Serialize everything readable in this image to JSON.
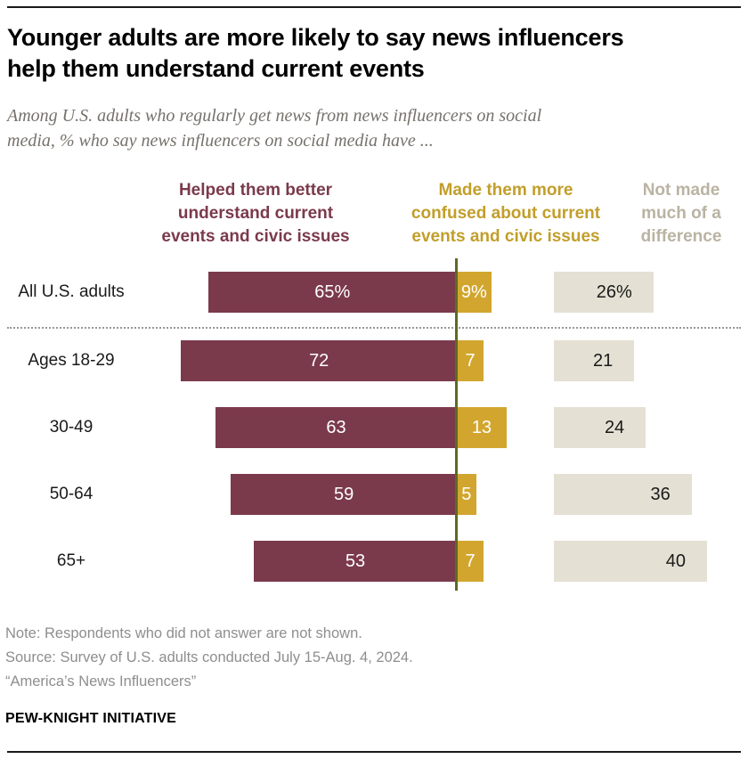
{
  "title": {
    "lines": [
      "Younger adults are more likely to say news influencers",
      "help them understand current events"
    ]
  },
  "subtitle": {
    "lines": [
      "Among U.S. adults who regularly get news from news influencers on social",
      "media, % who say news influencers on social media have ..."
    ]
  },
  "columns": [
    {
      "key": "helped",
      "header_lines": [
        "Helped them better",
        "understand current",
        "events and civic issues"
      ],
      "header_color": "#7b3a4c",
      "bar_color": "#7b3a4c",
      "label_color": "#ffffff"
    },
    {
      "key": "confused",
      "header_lines": [
        "Made them more",
        "confused about current",
        "events and civic issues"
      ],
      "header_color": "#c29e2a",
      "bar_color": "#d2a62e",
      "label_color": "#ffffff"
    },
    {
      "key": "no-difference",
      "header_lines": [
        "Not made",
        "much of a",
        "difference"
      ],
      "header_color": "#bab3a3",
      "bar_color": "#e4e0d3",
      "label_color": "#1a1a1a"
    }
  ],
  "chart_data": {
    "type": "bar",
    "orientation": "horizontal",
    "unit": "%",
    "title": "Younger adults are more likely to say news influencers help them understand current events",
    "subtitle": "Among U.S. adults who regularly get news from news influencers on social media, % who say news influencers on social media have ...",
    "categories": [
      "All U.S. adults",
      "Ages 18-29",
      "30-49",
      "50-64",
      "65+"
    ],
    "series": [
      {
        "name": "Helped them better understand current events and civic issues",
        "values": [
          65,
          72,
          63,
          59,
          53
        ],
        "display_labels": [
          "65%",
          "72",
          "63",
          "59",
          "53"
        ]
      },
      {
        "name": "Made them more confused about current events and civic issues",
        "values": [
          9,
          7,
          13,
          5,
          7
        ],
        "display_labels": [
          "9%",
          "7",
          "13",
          "5",
          "7"
        ]
      },
      {
        "name": "Not made much of a difference",
        "values": [
          26,
          21,
          24,
          36,
          40
        ],
        "display_labels": [
          "26%",
          "21",
          "24",
          "36",
          "40"
        ]
      }
    ],
    "xlim": [
      0,
      100
    ],
    "grid": false,
    "legend_position": "top",
    "axis_divider_color": "#5d6b21",
    "divider_after_category": "All U.S. adults"
  },
  "notes": [
    "Note: Respondents who did not answer are not shown.",
    "Source: Survey of U.S. adults conducted July 15-Aug. 4, 2024.",
    "“America’s News Influencers”"
  ],
  "footer": "PEW-KNIGHT INITIATIVE"
}
